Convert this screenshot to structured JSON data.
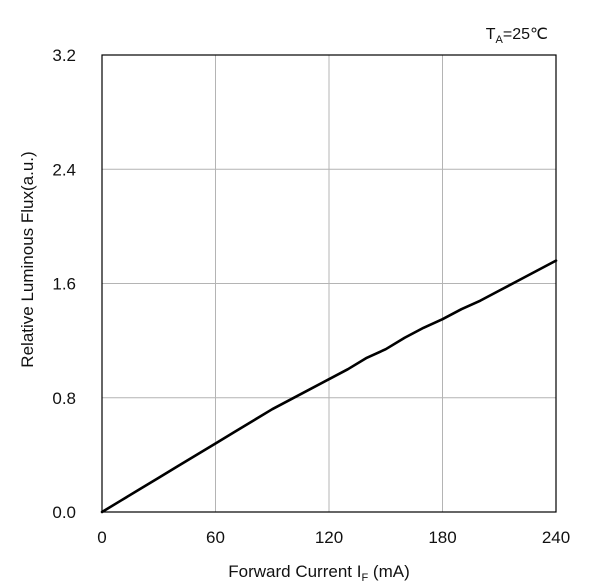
{
  "chart_data": {
    "type": "line",
    "title": "",
    "annotation": {
      "prefix": "T",
      "subscript": "A",
      "suffix": "=25℃"
    },
    "xlabel": {
      "prefix": "Forward Current  I",
      "subscript": "F",
      "suffix": "  (mA)"
    },
    "ylabel": "Relative Luminous Flux(a.u.)",
    "xlim": [
      0,
      240
    ],
    "ylim": [
      0,
      3.2
    ],
    "xticks": [
      0,
      60,
      120,
      180,
      240
    ],
    "xtick_labels": [
      "0",
      "60",
      "120",
      "180",
      "240"
    ],
    "yticks": [
      0,
      0.8,
      1.6,
      2.4,
      3.2
    ],
    "ytick_labels": [
      "0.0",
      "0.8",
      "1.6",
      "2.4",
      "3.2"
    ],
    "grid": true,
    "colors": {
      "line": "#000000",
      "grid": "#b4b4b4",
      "frame": "#000000"
    },
    "series": [
      {
        "x": [
          0,
          10,
          20,
          30,
          40,
          50,
          60,
          70,
          80,
          90,
          100,
          110,
          120,
          130,
          140,
          150,
          160,
          170,
          180,
          190,
          200,
          210,
          220,
          230,
          240
        ],
        "y": [
          0,
          0.08,
          0.16,
          0.24,
          0.32,
          0.4,
          0.48,
          0.56,
          0.64,
          0.72,
          0.79,
          0.86,
          0.93,
          1.0,
          1.08,
          1.14,
          1.22,
          1.29,
          1.35,
          1.42,
          1.48,
          1.55,
          1.62,
          1.69,
          1.76
        ]
      }
    ]
  }
}
